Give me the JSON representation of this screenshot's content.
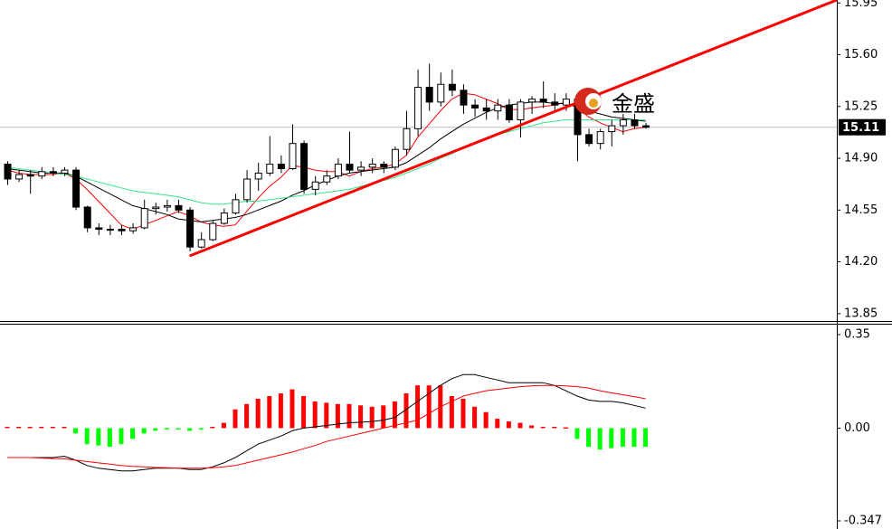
{
  "chart_data": {
    "type": "candlestick",
    "watermark": "金盛",
    "last_price": 15.11,
    "xlim": [
      -0.635,
      72.78
    ],
    "ylim": [
      13.8,
      15.97
    ],
    "yticks": [
      13.85,
      {
        "value": 14.2,
        "label": "14.20"
      },
      14.55,
      {
        "value": 14.9,
        "label": "14.90"
      },
      15.25,
      {
        "value": 15.6,
        "label": "15.60"
      },
      15.95
    ],
    "up_color": "#ffffff",
    "down_color": "#000000",
    "ohlc": [
      [
        14.86,
        14.88,
        14.72,
        14.76
      ],
      [
        14.76,
        14.82,
        14.74,
        14.79
      ],
      [
        14.79,
        14.82,
        14.66,
        14.78
      ],
      [
        14.78,
        14.84,
        14.76,
        14.81
      ],
      [
        14.81,
        14.84,
        14.78,
        14.8
      ],
      [
        14.8,
        14.84,
        14.78,
        14.82
      ],
      [
        14.82,
        14.84,
        14.55,
        14.57
      ],
      [
        14.57,
        14.58,
        14.4,
        14.43
      ],
      [
        14.43,
        14.46,
        14.38,
        14.42
      ],
      [
        14.42,
        14.45,
        14.38,
        14.42
      ],
      [
        14.42,
        14.45,
        14.38,
        14.41
      ],
      [
        14.41,
        14.46,
        14.39,
        14.43
      ],
      [
        14.43,
        14.62,
        14.42,
        14.56
      ],
      [
        14.56,
        14.6,
        14.52,
        14.57
      ],
      [
        14.57,
        14.62,
        14.54,
        14.58
      ],
      [
        14.58,
        14.62,
        14.53,
        14.55
      ],
      [
        14.55,
        14.57,
        14.27,
        14.3
      ],
      [
        14.3,
        14.4,
        14.29,
        14.35
      ],
      [
        14.35,
        14.48,
        14.34,
        14.46
      ],
      [
        14.46,
        14.56,
        14.45,
        14.53
      ],
      [
        14.53,
        14.66,
        14.52,
        14.62
      ],
      [
        14.62,
        14.82,
        14.6,
        14.76
      ],
      [
        14.76,
        14.87,
        14.68,
        14.8
      ],
      [
        14.8,
        15.05,
        14.78,
        14.86
      ],
      [
        14.86,
        14.92,
        14.8,
        14.83
      ],
      [
        14.83,
        15.13,
        14.82,
        15.0
      ],
      [
        15.0,
        15.02,
        14.66,
        14.69
      ],
      [
        14.69,
        14.78,
        14.65,
        14.74
      ],
      [
        14.74,
        14.82,
        14.72,
        14.78
      ],
      [
        14.78,
        14.9,
        14.76,
        14.86
      ],
      [
        14.86,
        15.08,
        14.8,
        14.82
      ],
      [
        14.82,
        14.88,
        14.78,
        14.84
      ],
      [
        14.84,
        14.9,
        14.8,
        14.86
      ],
      [
        14.86,
        14.88,
        14.8,
        14.84
      ],
      [
        14.84,
        14.98,
        14.82,
        14.96
      ],
      [
        14.96,
        15.22,
        14.92,
        15.1
      ],
      [
        15.1,
        15.5,
        15.05,
        15.38
      ],
      [
        15.38,
        15.54,
        15.22,
        15.28
      ],
      [
        15.28,
        15.48,
        15.25,
        15.4
      ],
      [
        15.4,
        15.5,
        15.32,
        15.36
      ],
      [
        15.36,
        15.4,
        15.2,
        15.26
      ],
      [
        15.26,
        15.3,
        15.18,
        15.24
      ],
      [
        15.24,
        15.3,
        15.16,
        15.22
      ],
      [
        15.22,
        15.3,
        15.16,
        15.26
      ],
      [
        15.26,
        15.3,
        15.14,
        15.16
      ],
      [
        15.16,
        15.3,
        15.04,
        15.28
      ],
      [
        15.28,
        15.32,
        15.2,
        15.3
      ],
      [
        15.3,
        15.42,
        15.24,
        15.28
      ],
      [
        15.28,
        15.34,
        15.22,
        15.26
      ],
      [
        15.26,
        15.34,
        15.22,
        15.3
      ],
      [
        15.3,
        15.32,
        14.88,
        15.06
      ],
      [
        15.06,
        15.1,
        14.98,
        15.0
      ],
      [
        15.0,
        15.1,
        14.96,
        15.08
      ],
      [
        15.08,
        15.16,
        14.98,
        15.12
      ],
      [
        15.12,
        15.2,
        15.06,
        15.16
      ],
      [
        15.16,
        15.2,
        15.1,
        15.12
      ],
      [
        15.12,
        15.14,
        15.1,
        15.11
      ]
    ],
    "lines": [
      {
        "color": "#ff0000",
        "values": [
          14.82,
          14.8,
          14.79,
          14.79,
          14.79,
          14.8,
          14.76,
          14.69,
          14.61,
          14.53,
          14.45,
          14.42,
          14.45,
          14.48,
          14.51,
          14.54,
          14.51,
          14.47,
          14.45,
          14.44,
          14.45,
          14.54,
          14.63,
          14.71,
          14.77,
          14.85,
          14.84,
          14.82,
          14.81,
          14.81,
          14.78,
          14.81,
          14.83,
          14.84,
          14.86,
          14.92,
          15.04,
          15.13,
          15.22,
          15.3,
          15.34,
          15.33,
          15.3,
          15.27,
          15.23,
          15.23,
          15.24,
          15.25,
          15.26,
          15.28,
          15.24,
          15.18,
          15.14,
          15.11,
          15.08,
          15.1,
          15.11
        ]
      },
      {
        "color": "#000000",
        "values": [
          14.83,
          14.82,
          14.81,
          14.8,
          14.8,
          14.8,
          14.78,
          14.74,
          14.7,
          14.66,
          14.62,
          14.58,
          14.56,
          14.54,
          14.52,
          14.49,
          14.48,
          14.47,
          14.48,
          14.49,
          14.5,
          14.52,
          14.55,
          14.58,
          14.61,
          14.65,
          14.68,
          14.72,
          14.75,
          14.78,
          14.8,
          14.81,
          14.82,
          14.83,
          14.84,
          14.87,
          14.92,
          14.97,
          15.03,
          15.08,
          15.13,
          15.17,
          15.21,
          15.24,
          15.26,
          15.27,
          15.28,
          15.28,
          15.27,
          15.27,
          15.25,
          15.22,
          15.2,
          15.18,
          15.17,
          15.16,
          15.15
        ]
      },
      {
        "color": "#33e68c",
        "values": [
          14.84,
          14.83,
          14.82,
          14.81,
          14.8,
          14.79,
          14.78,
          14.76,
          14.74,
          14.72,
          14.7,
          14.68,
          14.67,
          14.66,
          14.65,
          14.64,
          14.62,
          14.6,
          14.59,
          14.59,
          14.6,
          14.61,
          14.61,
          14.62,
          14.63,
          14.64,
          14.65,
          14.66,
          14.67,
          14.68,
          14.69,
          14.71,
          14.73,
          14.75,
          14.77,
          14.8,
          14.83,
          14.86,
          14.9,
          14.93,
          14.97,
          15.0,
          15.03,
          15.06,
          15.08,
          15.1,
          15.12,
          15.14,
          15.15,
          15.16,
          15.16,
          15.16,
          15.16,
          15.16,
          15.16,
          15.16,
          15.16
        ]
      }
    ],
    "trendline": {
      "color": "#ff0000",
      "x": [
        16,
        72.78
      ],
      "y": [
        14.24,
        15.97
      ]
    },
    "macd": {
      "ylim": [
        -0.347,
        0.35
      ],
      "yticks": [
        0.35,
        {
          "value": 0,
          "label": "0.00"
        },
        -0.347
      ],
      "positive_color": "#ff0000",
      "negative_color": "#00ff00",
      "histogram": [
        0.005,
        0.005,
        0.005,
        0.005,
        0.005,
        0.005,
        -0.02,
        -0.06,
        -0.065,
        -0.07,
        -0.06,
        -0.04,
        -0.02,
        -0.01,
        -0.005,
        -0.005,
        -0.01,
        -0.005,
        0.005,
        0.02,
        0.07,
        0.09,
        0.11,
        0.12,
        0.13,
        0.145,
        0.12,
        0.1,
        0.095,
        0.09,
        0.09,
        0.085,
        0.08,
        0.085,
        0.1,
        0.13,
        0.16,
        0.16,
        0.16,
        0.12,
        0.11,
        0.08,
        0.06,
        0.035,
        0.025,
        0.02,
        0.01,
        0.005,
        0.005,
        0.003,
        -0.04,
        -0.07,
        -0.08,
        -0.075,
        -0.07,
        -0.07,
        -0.07
      ],
      "lines": [
        {
          "color": "#000000",
          "values": [
            -0.11,
            -0.11,
            -0.11,
            -0.11,
            -0.11,
            -0.105,
            -0.12,
            -0.14,
            -0.15,
            -0.155,
            -0.16,
            -0.16,
            -0.155,
            -0.15,
            -0.15,
            -0.15,
            -0.155,
            -0.155,
            -0.145,
            -0.13,
            -0.11,
            -0.085,
            -0.06,
            -0.045,
            -0.03,
            -0.01,
            0.0,
            0.005,
            0.01,
            0.015,
            0.02,
            0.022,
            0.025,
            0.03,
            0.04,
            0.07,
            0.1,
            0.13,
            0.16,
            0.185,
            0.2,
            0.2,
            0.19,
            0.18,
            0.17,
            0.17,
            0.17,
            0.17,
            0.16,
            0.14,
            0.12,
            0.105,
            0.1,
            0.1,
            0.095,
            0.085,
            0.075
          ]
        },
        {
          "color": "#ff0000",
          "values": [
            -0.11,
            -0.11,
            -0.11,
            -0.112,
            -0.114,
            -0.115,
            -0.12,
            -0.125,
            -0.13,
            -0.135,
            -0.14,
            -0.143,
            -0.145,
            -0.147,
            -0.148,
            -0.15,
            -0.15,
            -0.15,
            -0.148,
            -0.145,
            -0.14,
            -0.13,
            -0.12,
            -0.11,
            -0.1,
            -0.09,
            -0.077,
            -0.065,
            -0.05,
            -0.04,
            -0.03,
            -0.02,
            -0.01,
            0.0,
            0.01,
            0.02,
            0.03,
            0.055,
            0.08,
            0.1,
            0.12,
            0.13,
            0.14,
            0.145,
            0.15,
            0.155,
            0.158,
            0.16,
            0.16,
            0.158,
            0.155,
            0.15,
            0.14,
            0.132,
            0.125,
            0.118,
            0.11
          ]
        }
      ]
    }
  }
}
